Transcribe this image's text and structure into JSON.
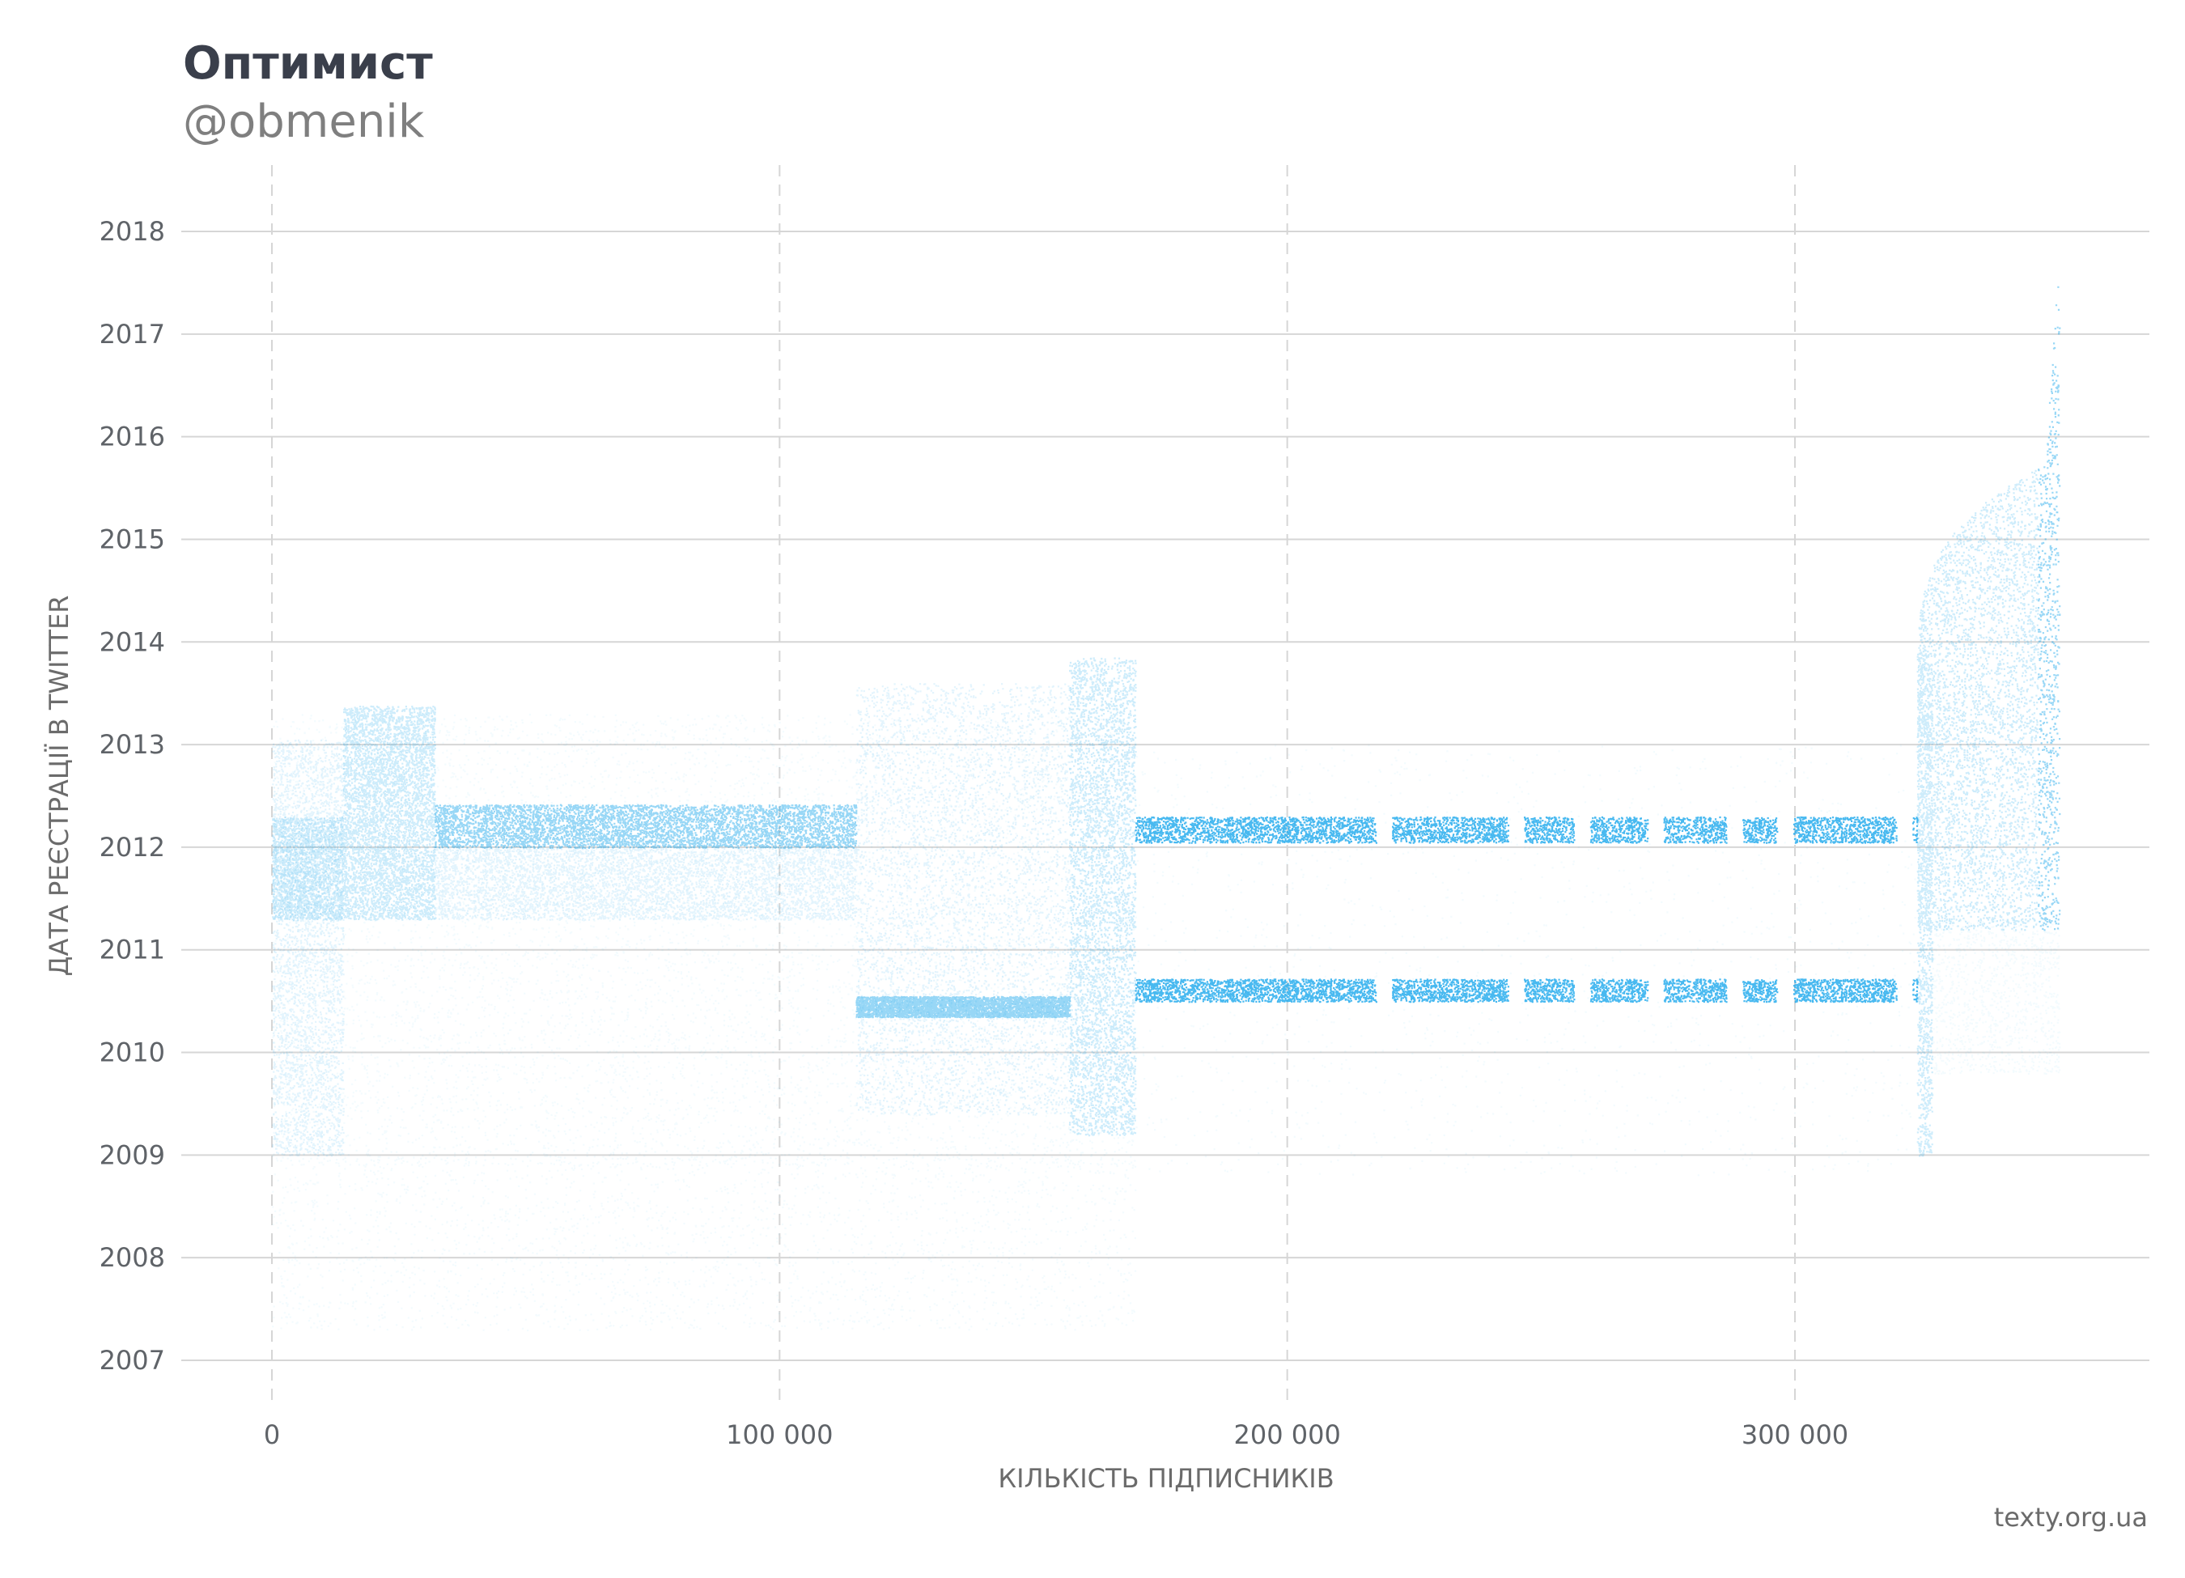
{
  "title": "Оптимист",
  "subtitle": "@obmenik",
  "credit": "texty.org.ua",
  "colors": {
    "points": "#1aa7ec",
    "grid": "#d6d6d6",
    "text": "#5f6368"
  },
  "chart_data": {
    "type": "scatter",
    "title": "Оптимист",
    "subtitle": "@obmenik",
    "xlabel": "КІЛЬКІСТЬ ПІДПИСНИКІВ",
    "ylabel": "ДАТА РЕЄСТРАЦІЇ В TWITTER",
    "xlim": [
      -18000,
      370000
    ],
    "ylim": [
      2006.55,
      2018.6
    ],
    "x_ticks": [
      {
        "value": 0,
        "label": "0"
      },
      {
        "value": 100000,
        "label": "100 000"
      },
      {
        "value": 200000,
        "label": "200 000"
      },
      {
        "value": 300000,
        "label": "300 000"
      }
    ],
    "y_ticks": [
      {
        "value": 2007,
        "label": "2007"
      },
      {
        "value": 2008,
        "label": "2008"
      },
      {
        "value": 2009,
        "label": "2009"
      },
      {
        "value": 2010,
        "label": "2010"
      },
      {
        "value": 2011,
        "label": "2011"
      },
      {
        "value": 2012,
        "label": "2012"
      },
      {
        "value": 2013,
        "label": "2013"
      },
      {
        "value": 2014,
        "label": "2014"
      },
      {
        "value": 2015,
        "label": "2015"
      },
      {
        "value": 2016,
        "label": "2016"
      },
      {
        "value": 2017,
        "label": "2017"
      },
      {
        "value": 2018,
        "label": "2018"
      }
    ],
    "x_grid": "dashed",
    "y_grid": "solid",
    "regions": [
      {
        "name": "diffuse background",
        "x": [
          0,
          170000
        ],
        "y": [
          2008.2,
          2013.4
        ],
        "density": "low"
      },
      {
        "name": "band 0-14k",
        "x": [
          0,
          14000
        ],
        "y": [
          2011.3,
          2012.3
        ],
        "density": "medium"
      },
      {
        "name": "band 14k-32k",
        "x": [
          14000,
          32000
        ],
        "y": [
          2011.3,
          2013.4
        ],
        "density": "medium"
      },
      {
        "name": "band 32k-115k",
        "x": [
          32000,
          115000
        ],
        "y": [
          2011.3,
          2012.0
        ],
        "density": "medium"
      },
      {
        "name": "dense stripe 32k-115k",
        "x": [
          32000,
          115000
        ],
        "y": [
          2012.0,
          2012.42
        ],
        "density": "high"
      },
      {
        "name": "block 115k-157k",
        "x": [
          115000,
          157000
        ],
        "y": [
          2009.4,
          2013.6
        ],
        "density": "medium"
      },
      {
        "name": "stripe 115k-157k",
        "x": [
          115000,
          157000
        ],
        "y": [
          2010.35,
          2010.55
        ],
        "density": "high"
      },
      {
        "name": "block 157k-170k",
        "x": [
          157000,
          170000
        ],
        "y": [
          2009.2,
          2013.85
        ],
        "density": "medium"
      },
      {
        "name": "upper band 170k-324k",
        "x": [
          170000,
          324000
        ],
        "y": [
          2012.05,
          2012.3
        ],
        "density": "very high"
      },
      {
        "name": "lower band 170k-324k",
        "x": [
          170000,
          324000
        ],
        "y": [
          2010.5,
          2010.72
        ],
        "density": "very high"
      },
      {
        "name": "growth curve 324k-352k",
        "x": [
          324000,
          352000
        ],
        "y": [
          2009.0,
          2018.1
        ],
        "density": "high"
      }
    ],
    "band_gaps_x": [
      219000,
      245000,
      258000,
      272500,
      288000,
      298000,
      321500
    ]
  }
}
